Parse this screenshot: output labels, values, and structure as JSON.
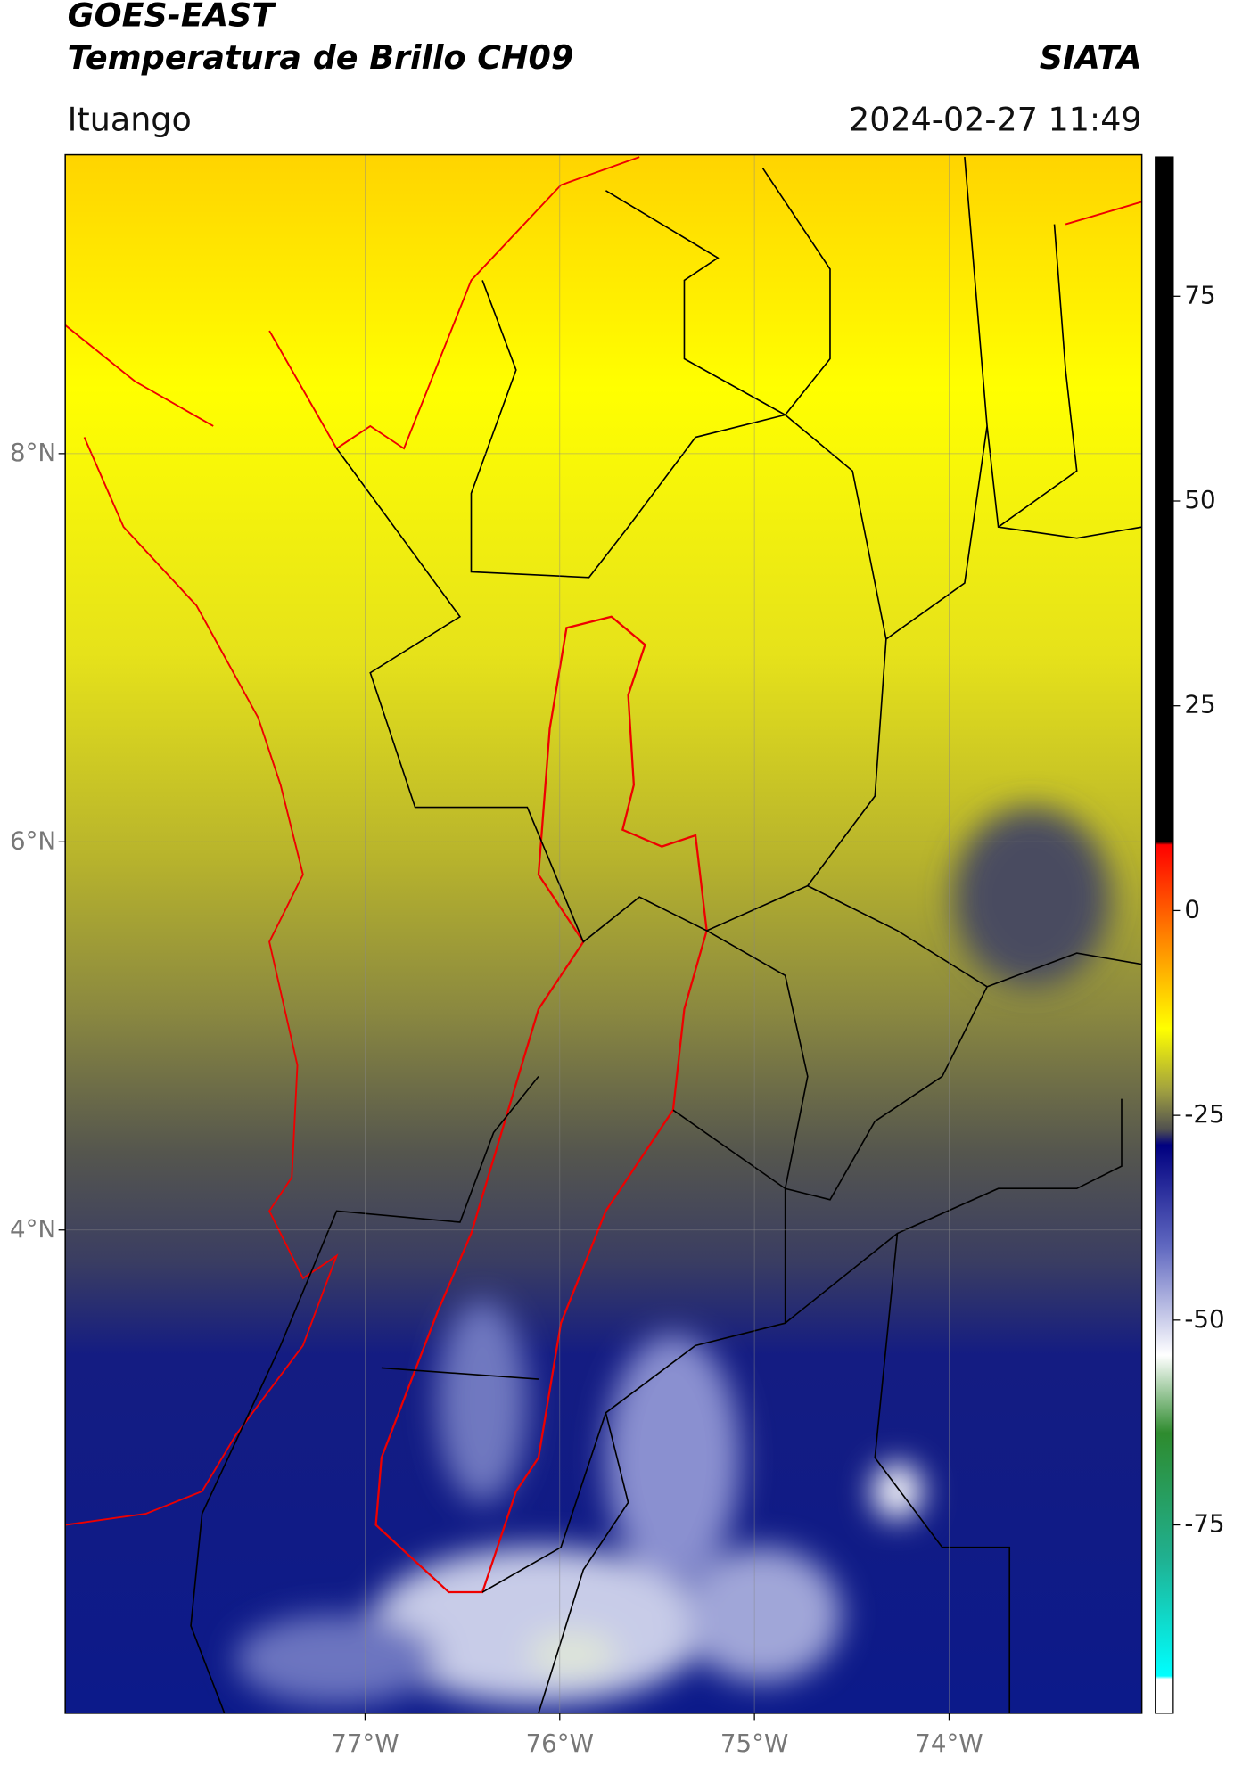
{
  "header": {
    "title": "GOES-EAST",
    "subtitle": "Temperatura de Brillo CH09",
    "source": "SIATA",
    "region": "Ituango",
    "timestamp": "2024-02-27 11:49"
  },
  "map": {
    "lon_range": [
      -78.54,
      -73.01
    ],
    "lat_range": [
      1.51,
      9.54
    ],
    "lon_ticks": [
      {
        "value": -77,
        "label": "77°W"
      },
      {
        "value": -76,
        "label": "76°W"
      },
      {
        "value": -75,
        "label": "75°W"
      },
      {
        "value": -74,
        "label": "74°W"
      }
    ],
    "lat_ticks": [
      {
        "value": 8,
        "label": "8°N"
      },
      {
        "value": 6,
        "label": "6°N"
      },
      {
        "value": 4,
        "label": "4°N"
      }
    ],
    "grid": true
  },
  "colorbar": {
    "range": [
      -98,
      92
    ],
    "ticks": [
      75,
      50,
      25,
      0,
      -25,
      -50,
      -75
    ]
  }
}
